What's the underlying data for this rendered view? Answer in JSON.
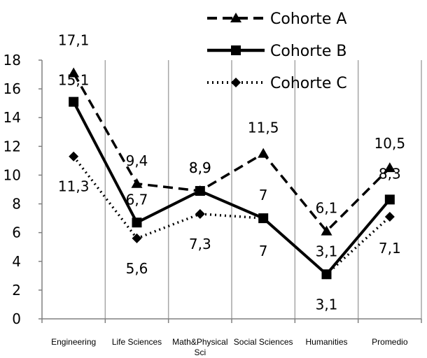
{
  "chart_data": {
    "type": "line",
    "categories": [
      "Engineering",
      "Life Sciences",
      "Math&Physical Sci",
      "Social Sciences",
      "Humanities",
      "Promedio"
    ],
    "category_lines": [
      [
        "Engineering"
      ],
      [
        "Life Sciences"
      ],
      [
        "Math&Physical",
        "Sci"
      ],
      [
        "Social Sciences"
      ],
      [
        "Humanities"
      ],
      [
        "Promedio"
      ]
    ],
    "ylim": [
      0,
      18
    ],
    "yticks": [
      0,
      2,
      4,
      6,
      8,
      10,
      12,
      14,
      16,
      18
    ],
    "grid": "vertical lines between categories",
    "legend_position": "top-right",
    "series": [
      {
        "name": "Cohorte A",
        "values": [
          17.1,
          9.4,
          8.9,
          11.5,
          6.1,
          10.5
        ],
        "labels": [
          "17,1",
          "9,4",
          "8,9",
          "11,5",
          "6,1",
          "10,5"
        ],
        "style": "dashed",
        "marker": "triangle",
        "color": "#000000"
      },
      {
        "name": "Cohorte B",
        "values": [
          15.1,
          6.7,
          8.9,
          7.0,
          3.1,
          8.3
        ],
        "labels": [
          "15,1",
          "6,7",
          "8,9",
          "7",
          "3,1",
          "8,3"
        ],
        "style": "solid",
        "marker": "square",
        "color": "#000000"
      },
      {
        "name": "Cohorte C",
        "values": [
          11.3,
          5.6,
          7.3,
          7.0,
          3.1,
          7.1
        ],
        "labels": [
          "11,3",
          "5,6",
          "7,3",
          "7",
          "3,1",
          "7,1"
        ],
        "style": "dotted",
        "marker": "diamond",
        "color": "#000000"
      }
    ]
  }
}
